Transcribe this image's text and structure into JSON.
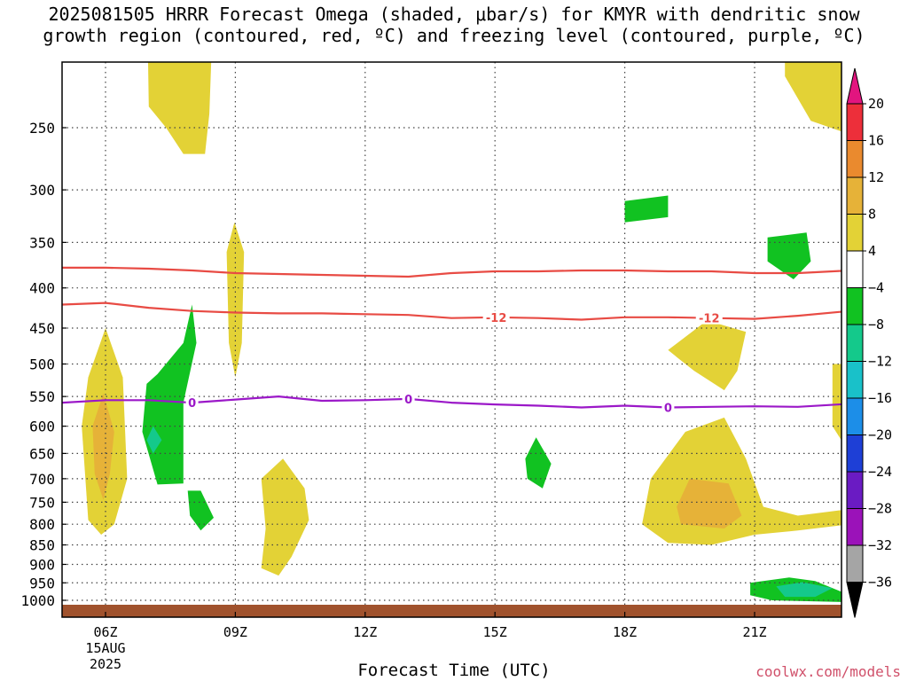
{
  "title_line1": "2025081505 HRRR Forecast Omega (shaded, μbar/s) for KMYR with dendritic snow",
  "title_line2": "growth region (contoured, red, ºC) and freezing level (contoured, purple, ºC)",
  "xlabel": "Forecast Time (UTC)",
  "credit": "coolwx.com/models",
  "chart_data": {
    "type": "contour",
    "title": "2025081505 HRRR Forecast Omega (shaded, μbar/s) for KMYR with dendritic snow growth region (contoured, red, ºC) and freezing level (contoured, purple, ºC)",
    "xlabel": "Forecast Time (UTC)",
    "ylabel": "",
    "x_unit": "hours UTC on 15 AUG 2025",
    "xlim": [
      5,
      23.2
    ],
    "ylim": [
      1050,
      200
    ],
    "y_scale": "log-pressure (inverted)",
    "x_ticks": [
      {
        "x": 6,
        "label": "06Z",
        "sub1": "15AUG",
        "sub2": "2025"
      },
      {
        "x": 9,
        "label": "09Z"
      },
      {
        "x": 12,
        "label": "12Z"
      },
      {
        "x": 15,
        "label": "15Z"
      },
      {
        "x": 18,
        "label": "18Z"
      },
      {
        "x": 21,
        "label": "21Z"
      }
    ],
    "y_ticks": [
      250,
      300,
      350,
      400,
      450,
      500,
      550,
      600,
      650,
      700,
      750,
      800,
      850,
      900,
      950,
      1000
    ],
    "grid": true,
    "colorbar": {
      "labels": [
        "20",
        "16",
        "12",
        "8",
        "4",
        "−4",
        "−8",
        "−12",
        "−16",
        "−20",
        "−24",
        "−28",
        "−32",
        "−36"
      ],
      "colors": [
        "#ed2f3a",
        "#ea8a2e",
        "#e6b238",
        "#e3d236",
        "#ffffff",
        "#11c221",
        "#14c98b",
        "#19c1c9",
        "#1c8ee8",
        "#1e3fd6",
        "#6a1bc3",
        "#9b12b9",
        "#a5a5a5"
      ],
      "top_color": "#e2157f",
      "bottom_color": "#000000"
    },
    "series": [
      {
        "name": "Dendritic snow growth region -12 ºC",
        "label": "-12",
        "color": "#e84b44",
        "points": [
          [
            5,
            420
          ],
          [
            6,
            418
          ],
          [
            7,
            424
          ],
          [
            8,
            428
          ],
          [
            9,
            430
          ],
          [
            10,
            431
          ],
          [
            11,
            431
          ],
          [
            12,
            432
          ],
          [
            13,
            433
          ],
          [
            14,
            437
          ],
          [
            15,
            436
          ],
          [
            16,
            437
          ],
          [
            17,
            439
          ],
          [
            18,
            436
          ],
          [
            19,
            436
          ],
          [
            20,
            437
          ],
          [
            21,
            438
          ],
          [
            22,
            434
          ],
          [
            23.2,
            428
          ]
        ]
      },
      {
        "name": "Dendritic snow growth region upper boundary",
        "label": "",
        "color": "#e84b44",
        "points": [
          [
            5,
            377
          ],
          [
            6,
            377
          ],
          [
            7,
            378
          ],
          [
            8,
            380
          ],
          [
            9,
            383
          ],
          [
            10,
            384
          ],
          [
            11,
            385
          ],
          [
            12,
            386
          ],
          [
            13,
            387
          ],
          [
            14,
            383
          ],
          [
            15,
            381
          ],
          [
            16,
            381
          ],
          [
            17,
            380
          ],
          [
            18,
            380
          ],
          [
            19,
            381
          ],
          [
            20,
            381
          ],
          [
            21,
            383
          ],
          [
            22,
            383
          ],
          [
            23.2,
            380
          ]
        ]
      },
      {
        "name": "Freezing level 0 ºC",
        "label": "0",
        "color": "#9b18c8",
        "points": [
          [
            5,
            560
          ],
          [
            6,
            556
          ],
          [
            7,
            556
          ],
          [
            8,
            560
          ],
          [
            9,
            555
          ],
          [
            10,
            550
          ],
          [
            11,
            557
          ],
          [
            12,
            556
          ],
          [
            13,
            554
          ],
          [
            14,
            560
          ],
          [
            15,
            563
          ],
          [
            16,
            565
          ],
          [
            17,
            568
          ],
          [
            18,
            565
          ],
          [
            19,
            568
          ],
          [
            20,
            567
          ],
          [
            21,
            566
          ],
          [
            22,
            567
          ],
          [
            23.2,
            562
          ]
        ]
      }
    ],
    "omega_regions": [
      {
        "band": "4 to 8",
        "color": "#e3d236",
        "points": [
          [
            6,
            450
          ],
          [
            6.4,
            520
          ],
          [
            6.5,
            700
          ],
          [
            6.2,
            800
          ],
          [
            5.9,
            825
          ],
          [
            5.6,
            790
          ],
          [
            5.45,
            600
          ],
          [
            5.6,
            520
          ]
        ]
      },
      {
        "band": "8 to 12",
        "color": "#e6b238",
        "points": [
          [
            5.95,
            545
          ],
          [
            6.2,
            610
          ],
          [
            6.1,
            690
          ],
          [
            5.95,
            745
          ],
          [
            5.75,
            690
          ],
          [
            5.7,
            600
          ]
        ]
      },
      {
        "band": "4 to 8",
        "color": "#e3d236",
        "points": [
          [
            6.98,
            200
          ],
          [
            8.45,
            200
          ],
          [
            8.4,
            240
          ],
          [
            8.3,
            270
          ],
          [
            7.8,
            270
          ],
          [
            7.4,
            250
          ],
          [
            7,
            235
          ]
        ]
      },
      {
        "band": "-8 to -4",
        "color": "#11c221",
        "points": [
          [
            8,
            420
          ],
          [
            8.1,
            470
          ],
          [
            7.8,
            560
          ],
          [
            7.8,
            710
          ],
          [
            7.2,
            712
          ],
          [
            6.85,
            610
          ],
          [
            6.95,
            530
          ],
          [
            7.2,
            515
          ],
          [
            7.8,
            470
          ]
        ]
      },
      {
        "band": "-12 to -8",
        "color": "#14c98b",
        "points": [
          [
            7.1,
            600
          ],
          [
            7.3,
            625
          ],
          [
            7.1,
            650
          ],
          [
            6.95,
            625
          ]
        ]
      },
      {
        "band": "-8 to -4",
        "color": "#11c221",
        "points": [
          [
            7.9,
            725
          ],
          [
            8.2,
            725
          ],
          [
            8.5,
            785
          ],
          [
            8.2,
            815
          ],
          [
            7.95,
            780
          ]
        ]
      },
      {
        "band": "4 to 8",
        "color": "#e3d236",
        "points": [
          [
            8.98,
            330
          ],
          [
            9.2,
            360
          ],
          [
            9.15,
            470
          ],
          [
            9,
            520
          ],
          [
            8.85,
            470
          ],
          [
            8.8,
            360
          ]
        ]
      },
      {
        "band": "4 to 8",
        "color": "#e3d236",
        "points": [
          [
            10.1,
            660
          ],
          [
            10.6,
            720
          ],
          [
            10.7,
            790
          ],
          [
            10.3,
            880
          ],
          [
            10,
            930
          ],
          [
            9.6,
            910
          ],
          [
            9.7,
            810
          ],
          [
            9.6,
            700
          ]
        ]
      },
      {
        "band": "-8 to -4",
        "color": "#11c221",
        "points": [
          [
            15.95,
            620
          ],
          [
            16.3,
            670
          ],
          [
            16.1,
            720
          ],
          [
            15.75,
            700
          ],
          [
            15.7,
            660
          ]
        ]
      },
      {
        "band": "-8 to -4",
        "color": "#11c221",
        "points": [
          [
            18,
            310
          ],
          [
            19,
            305
          ],
          [
            19,
            325
          ],
          [
            18,
            330
          ]
        ]
      },
      {
        "band": "-8 to -4",
        "color": "#11c221",
        "points": [
          [
            21.3,
            345
          ],
          [
            22.2,
            340
          ],
          [
            22.3,
            370
          ],
          [
            21.9,
            390
          ],
          [
            21.3,
            370
          ]
        ]
      },
      {
        "band": "4 to 8",
        "color": "#e3d236",
        "points": [
          [
            19,
            480
          ],
          [
            19.9,
            440
          ],
          [
            20.8,
            455
          ],
          [
            20.6,
            510
          ],
          [
            20.3,
            540
          ],
          [
            19.6,
            510
          ],
          [
            19.2,
            490
          ]
        ]
      },
      {
        "band": "4 to 8",
        "color": "#e3d236",
        "points": [
          [
            18.6,
            700
          ],
          [
            19.4,
            610
          ],
          [
            20.3,
            585
          ],
          [
            20.8,
            660
          ],
          [
            21.2,
            760
          ],
          [
            22,
            780
          ],
          [
            23.2,
            765
          ],
          [
            23.2,
            800
          ],
          [
            22,
            815
          ],
          [
            21,
            825
          ],
          [
            20,
            850
          ],
          [
            19,
            845
          ],
          [
            18.4,
            800
          ]
        ]
      },
      {
        "band": "8 to 12",
        "color": "#e6b238",
        "points": [
          [
            19.5,
            700
          ],
          [
            20.4,
            710
          ],
          [
            20.7,
            780
          ],
          [
            20.3,
            810
          ],
          [
            19.3,
            800
          ],
          [
            19.2,
            760
          ]
        ]
      },
      {
        "band": "4 to 8",
        "color": "#e3d236",
        "points": [
          [
            21.7,
            200
          ],
          [
            23.2,
            200
          ],
          [
            23.2,
            245
          ],
          [
            23.2,
            255
          ],
          [
            22.3,
            245
          ],
          [
            21.7,
            215
          ]
        ]
      },
      {
        "band": "4 to 8",
        "color": "#e3d236",
        "points": [
          [
            22.8,
            500
          ],
          [
            23.2,
            500
          ],
          [
            23.2,
            650
          ],
          [
            22.8,
            600
          ]
        ]
      },
      {
        "band": "-8 to -4",
        "color": "#11c221",
        "points": [
          [
            20.9,
            950
          ],
          [
            21.8,
            935
          ],
          [
            22.4,
            945
          ],
          [
            23.2,
            985
          ],
          [
            23,
            1005
          ],
          [
            21.4,
            1000
          ],
          [
            20.9,
            985
          ]
        ]
      },
      {
        "band": "-12 to -8",
        "color": "#14c98b",
        "points": [
          [
            21.5,
            960
          ],
          [
            22.1,
            948
          ],
          [
            22.8,
            965
          ],
          [
            22.4,
            990
          ],
          [
            21.7,
            990
          ]
        ]
      }
    ],
    "surface_color": "#a0522d"
  }
}
